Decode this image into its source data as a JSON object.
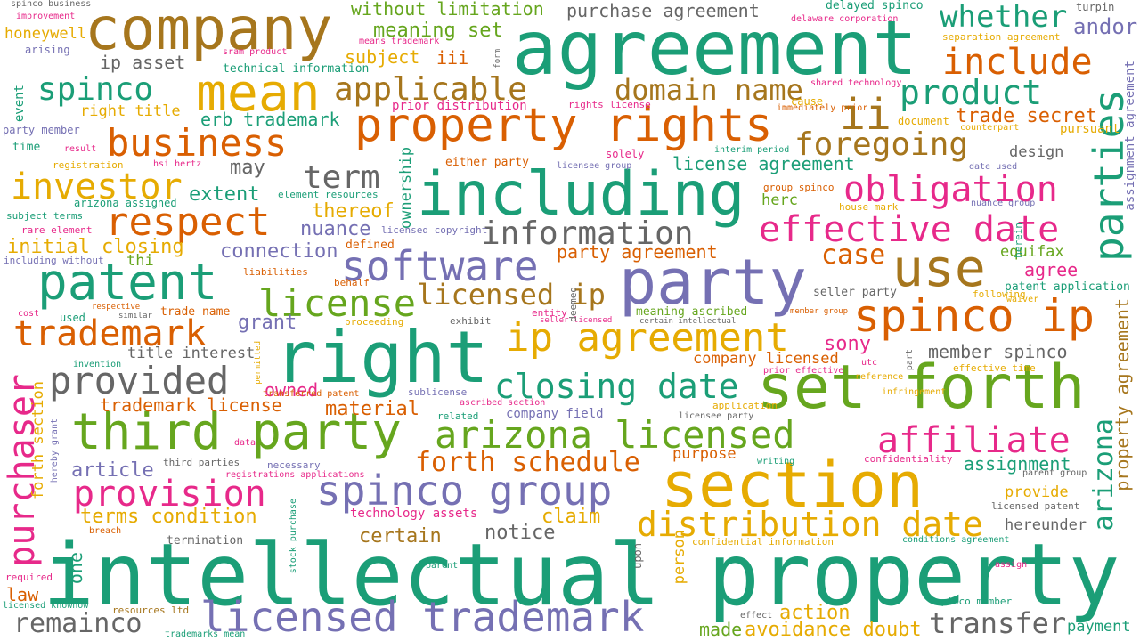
{
  "words": [
    {
      "text": "intellectual",
      "color": "#1b9e77"
    },
    {
      "text": "property",
      "color": "#1b9e77"
    },
    {
      "text": "agreement",
      "color": "#1b9e77"
    },
    {
      "text": "right",
      "color": "#1b9e77"
    },
    {
      "text": "company",
      "color": "#a6761d"
    },
    {
      "text": "section",
      "color": "#e6ab02"
    },
    {
      "text": "set forth",
      "color": "#66a61e"
    },
    {
      "text": "including",
      "color": "#1b9e77"
    },
    {
      "text": "party",
      "color": "#7570b3"
    },
    {
      "text": "property rights",
      "color": "#d95f02"
    },
    {
      "text": "third party",
      "color": "#66a61e"
    },
    {
      "text": "mean",
      "color": "#e6ab02"
    },
    {
      "text": "patent",
      "color": "#1b9e77"
    },
    {
      "text": "licensed trademark",
      "color": "#7570b3"
    },
    {
      "text": "spinco ip",
      "color": "#d95f02"
    },
    {
      "text": "use",
      "color": "#a6761d"
    },
    {
      "text": "ip agreement",
      "color": "#e6ab02"
    },
    {
      "text": "arizona licensed",
      "color": "#66a61e"
    },
    {
      "text": "spinco group",
      "color": "#7570b3"
    },
    {
      "text": "effective date",
      "color": "#e7298a"
    },
    {
      "text": "parties",
      "color": "#1b9e77"
    },
    {
      "text": "business",
      "color": "#d95f02"
    },
    {
      "text": "respect",
      "color": "#d95f02"
    },
    {
      "text": "provision",
      "color": "#e7298a"
    },
    {
      "text": "distribution date",
      "color": "#e6ab02"
    },
    {
      "text": "software",
      "color": "#7570b3"
    },
    {
      "text": "obligation",
      "color": "#e7298a"
    },
    {
      "text": "provided",
      "color": "#666666"
    },
    {
      "text": "trademark",
      "color": "#d95f02"
    },
    {
      "text": "affiliate",
      "color": "#e7298a"
    },
    {
      "text": "closing date",
      "color": "#1b9e77"
    },
    {
      "text": "information",
      "color": "#666666"
    },
    {
      "text": "license",
      "color": "#66a61e"
    },
    {
      "text": "investor",
      "color": "#e6ab02"
    },
    {
      "text": "purchaser",
      "color": "#e7298a"
    },
    {
      "text": "include",
      "color": "#d95f02"
    },
    {
      "text": "foregoing",
      "color": "#a6761d"
    },
    {
      "text": "product",
      "color": "#1b9e77"
    },
    {
      "text": "ii",
      "color": "#a6761d"
    },
    {
      "text": "whether",
      "color": "#1b9e77"
    },
    {
      "text": "applicable",
      "color": "#a6761d"
    },
    {
      "text": "domain name",
      "color": "#a6761d"
    },
    {
      "text": "licensed ip",
      "color": "#a6761d"
    },
    {
      "text": "spinco",
      "color": "#1b9e77"
    },
    {
      "text": "forth schedule",
      "color": "#d95f02"
    },
    {
      "text": "remainco",
      "color": "#666666"
    },
    {
      "text": "transfer",
      "color": "#666666"
    },
    {
      "text": "arizona",
      "color": "#1b9e77"
    },
    {
      "text": "term",
      "color": "#666666"
    },
    {
      "text": "case",
      "color": "#d95f02"
    },
    {
      "text": "andor",
      "color": "#7570b3"
    },
    {
      "text": "trade secret",
      "color": "#d95f02"
    },
    {
      "text": "property agreement",
      "color": "#a6761d"
    },
    {
      "text": "meaning set",
      "color": "#66a61e"
    },
    {
      "text": "without limitation",
      "color": "#66a61e"
    },
    {
      "text": "purchase agreement",
      "color": "#666666"
    },
    {
      "text": "initial closing",
      "color": "#e6ab02"
    },
    {
      "text": "thereof",
      "color": "#e6ab02"
    },
    {
      "text": "connection",
      "color": "#7570b3"
    },
    {
      "text": "nuance",
      "color": "#7570b3"
    },
    {
      "text": "may",
      "color": "#666666"
    },
    {
      "text": "extent",
      "color": "#1b9e77"
    },
    {
      "text": "erb trademark",
      "color": "#1b9e77"
    },
    {
      "text": "right title",
      "color": "#e6ab02"
    },
    {
      "text": "ip asset",
      "color": "#666666"
    },
    {
      "text": "honeywell",
      "color": "#e6ab02"
    },
    {
      "text": "subject",
      "color": "#e6ab02"
    },
    {
      "text": "iii",
      "color": "#d95f02"
    },
    {
      "text": "license agreement",
      "color": "#1b9e77"
    },
    {
      "text": "herc",
      "color": "#66a61e"
    },
    {
      "text": "grant",
      "color": "#7570b3"
    },
    {
      "text": "owned",
      "color": "#e7298a"
    },
    {
      "text": "title interest",
      "color": "#666666"
    },
    {
      "text": "trademark license",
      "color": "#d95f02"
    },
    {
      "text": "material",
      "color": "#d95f02"
    },
    {
      "text": "article",
      "color": "#7570b3"
    },
    {
      "text": "terms condition",
      "color": "#e6ab02"
    },
    {
      "text": "claim",
      "color": "#e6ab02"
    },
    {
      "text": "notice",
      "color": "#666666"
    },
    {
      "text": "certain",
      "color": "#a6761d"
    },
    {
      "text": "law",
      "color": "#d95f02"
    },
    {
      "text": "company licensed",
      "color": "#d95f02"
    },
    {
      "text": "sony",
      "color": "#e7298a"
    },
    {
      "text": "member spinco",
      "color": "#666666"
    },
    {
      "text": "agree",
      "color": "#e7298a"
    },
    {
      "text": "equifax",
      "color": "#66a61e"
    },
    {
      "text": "party agreement",
      "color": "#d95f02"
    },
    {
      "text": "purpose",
      "color": "#d95f02"
    },
    {
      "text": "assignment",
      "color": "#1b9e77"
    },
    {
      "text": "provide",
      "color": "#e6ab02"
    },
    {
      "text": "hereunder",
      "color": "#666666"
    },
    {
      "text": "action",
      "color": "#e6ab02"
    },
    {
      "text": "avoidance doubt",
      "color": "#e6ab02"
    },
    {
      "text": "made",
      "color": "#66a61e"
    },
    {
      "text": "payment",
      "color": "#1b9e77"
    },
    {
      "text": "design",
      "color": "#666666"
    },
    {
      "text": "pursuant",
      "color": "#e6ab02"
    },
    {
      "text": "one",
      "color": "#1b9e77"
    },
    {
      "text": "forth section",
      "color": "#e6ab02"
    },
    {
      "text": "ownership",
      "color": "#1b9e77"
    },
    {
      "text": "person",
      "color": "#e6ab02"
    },
    {
      "text": "company field",
      "color": "#7570b3"
    },
    {
      "text": "technology assets",
      "color": "#e7298a"
    },
    {
      "text": "thi",
      "color": "#66a61e"
    },
    {
      "text": "spinco business",
      "color": "#666666"
    },
    {
      "text": "improvement",
      "color": "#e7298a"
    },
    {
      "text": "arising",
      "color": "#7570b3"
    },
    {
      "text": "event",
      "color": "#1b9e77"
    },
    {
      "text": "party member",
      "color": "#7570b3"
    },
    {
      "text": "time",
      "color": "#1b9e77"
    },
    {
      "text": "registration",
      "color": "#e6ab02"
    },
    {
      "text": "subject terms",
      "color": "#1b9e77"
    },
    {
      "text": "rare element",
      "color": "#e7298a"
    },
    {
      "text": "including without",
      "color": "#7570b3"
    },
    {
      "text": "technical information",
      "color": "#1b9e77"
    },
    {
      "text": "sram product",
      "color": "#e7298a"
    },
    {
      "text": "means trademark",
      "color": "#e7298a"
    },
    {
      "text": "prior distribution",
      "color": "#e7298a"
    },
    {
      "text": "rights license",
      "color": "#e7298a"
    },
    {
      "text": "either party",
      "color": "#d95f02"
    },
    {
      "text": "solely",
      "color": "#e7298a"
    },
    {
      "text": "licensee group",
      "color": "#7570b3"
    },
    {
      "text": "interim period",
      "color": "#1b9e77"
    },
    {
      "text": "group spinco",
      "color": "#d95f02"
    },
    {
      "text": "house mark",
      "color": "#e6ab02"
    },
    {
      "text": "nuance group",
      "color": "#7570b3"
    },
    {
      "text": "delayed spinco",
      "color": "#1b9e77"
    },
    {
      "text": "delaware corporation",
      "color": "#e7298a"
    },
    {
      "text": "turpin",
      "color": "#666666"
    },
    {
      "text": "separation agreement",
      "color": "#e6ab02"
    },
    {
      "text": "shared technology",
      "color": "#e7298a"
    },
    {
      "text": "immediately prior",
      "color": "#d95f02"
    },
    {
      "text": "cause",
      "color": "#e6ab02"
    },
    {
      "text": "document",
      "color": "#e6ab02"
    },
    {
      "text": "counterpart",
      "color": "#e6ab02"
    },
    {
      "text": "date used",
      "color": "#7570b3"
    },
    {
      "text": "herein",
      "color": "#1b9e77"
    },
    {
      "text": "hsi hertz",
      "color": "#e7298a"
    },
    {
      "text": "result",
      "color": "#e7298a"
    },
    {
      "text": "element resources",
      "color": "#1b9e77"
    },
    {
      "text": "arizona assigned",
      "color": "#1b9e77"
    },
    {
      "text": "licensed copyright",
      "color": "#7570b3"
    },
    {
      "text": "defined",
      "color": "#d95f02"
    },
    {
      "text": "liabilities",
      "color": "#d95f02"
    },
    {
      "text": "behalf",
      "color": "#d95f02"
    },
    {
      "text": "seller party",
      "color": "#666666"
    },
    {
      "text": "following",
      "color": "#e6ab02"
    },
    {
      "text": "patent application",
      "color": "#1b9e77"
    },
    {
      "text": "waiver",
      "color": "#e6ab02"
    },
    {
      "text": "cost",
      "color": "#e7298a"
    },
    {
      "text": "respective",
      "color": "#d95f02"
    },
    {
      "text": "used",
      "color": "#1b9e77"
    },
    {
      "text": "similar",
      "color": "#666666"
    },
    {
      "text": "trade name",
      "color": "#d95f02"
    },
    {
      "text": "proceeding",
      "color": "#e6ab02"
    },
    {
      "text": "exhibit",
      "color": "#666666"
    },
    {
      "text": "entity",
      "color": "#e7298a"
    },
    {
      "text": "seller licensed",
      "color": "#e7298a"
    },
    {
      "text": "meaning ascribed",
      "color": "#66a61e"
    },
    {
      "text": "certain intellectual",
      "color": "#666666"
    },
    {
      "text": "member group",
      "color": "#d95f02"
    },
    {
      "text": "deemed",
      "color": "#666666"
    },
    {
      "text": "invention",
      "color": "#1b9e77"
    },
    {
      "text": "permitted",
      "color": "#e6ab02"
    },
    {
      "text": "prior effective",
      "color": "#e7298a"
    },
    {
      "text": "utc",
      "color": "#e7298a"
    },
    {
      "text": "part",
      "color": "#666666"
    },
    {
      "text": "effective time",
      "color": "#e6ab02"
    },
    {
      "text": "reference",
      "color": "#e6ab02"
    },
    {
      "text": "infringement",
      "color": "#e6ab02"
    },
    {
      "text": "transferred patent",
      "color": "#d95f02"
    },
    {
      "text": "sublicense",
      "color": "#7570b3"
    },
    {
      "text": "ascribed section",
      "color": "#e7298a"
    },
    {
      "text": "application",
      "color": "#e6ab02"
    },
    {
      "text": "licensee party",
      "color": "#666666"
    },
    {
      "text": "related",
      "color": "#1b9e77"
    },
    {
      "text": "hereby grant",
      "color": "#7570b3"
    },
    {
      "text": "data",
      "color": "#e7298a"
    },
    {
      "text": "third parties",
      "color": "#666666"
    },
    {
      "text": "necessary",
      "color": "#7570b3"
    },
    {
      "text": "registrations applications",
      "color": "#e7298a"
    },
    {
      "text": "writing",
      "color": "#1b9e77"
    },
    {
      "text": "confidentiality",
      "color": "#e7298a"
    },
    {
      "text": "parent group",
      "color": "#666666"
    },
    {
      "text": "licensed patent",
      "color": "#666666"
    },
    {
      "text": "required",
      "color": "#e7298a"
    },
    {
      "text": "breach",
      "color": "#d95f02"
    },
    {
      "text": "termination",
      "color": "#666666"
    },
    {
      "text": "stock purchase",
      "color": "#1b9e77"
    },
    {
      "text": "parent",
      "color": "#1b9e77"
    },
    {
      "text": "upon",
      "color": "#666666"
    },
    {
      "text": "confidential information",
      "color": "#e6ab02"
    },
    {
      "text": "conditions agreement",
      "color": "#1b9e77"
    },
    {
      "text": "assign",
      "color": "#e7298a"
    },
    {
      "text": "licensed knowhow",
      "color": "#1b9e77"
    },
    {
      "text": "resources ltd",
      "color": "#a6761d"
    },
    {
      "text": "trademarks mean",
      "color": "#1b9e77"
    },
    {
      "text": "effect",
      "color": "#666666"
    },
    {
      "text": "spinco member",
      "color": "#1b9e77"
    },
    {
      "text": "form",
      "color": "#666666"
    },
    {
      "text": "assignment agreement",
      "color": "#7570b3"
    }
  ]
}
